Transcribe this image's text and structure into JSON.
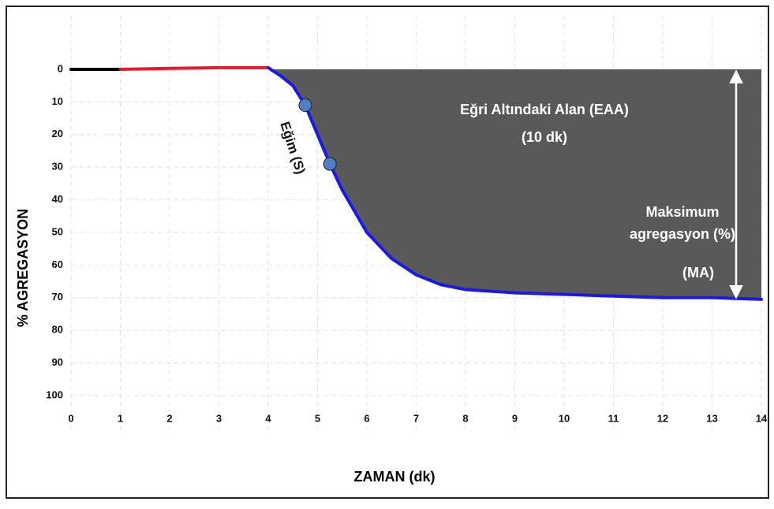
{
  "chart_data": {
    "type": "line",
    "xlabel": "ZAMAN (dk)",
    "ylabel": "% AGREGASYON",
    "xlim": [
      0,
      14
    ],
    "xticks": [
      0,
      1,
      2,
      3,
      4,
      5,
      6,
      7,
      8,
      9,
      10,
      11,
      12,
      13,
      14
    ],
    "ylim": [
      -10,
      110
    ],
    "yticks": [
      0,
      10,
      20,
      30,
      40,
      50,
      60,
      70,
      80,
      90,
      100
    ],
    "y_reversed": true,
    "grid": true,
    "series": [
      {
        "color": "#000000",
        "x": [
          0,
          1
        ],
        "values": [
          0,
          0
        ]
      },
      {
        "color": "#e8192c",
        "x": [
          1,
          2,
          3,
          4
        ],
        "values": [
          0,
          -0.3,
          -0.5,
          -0.5
        ]
      },
      {
        "color": "#1a1ae6",
        "x": [
          4,
          4.25,
          4.5,
          4.75,
          5,
          5.25,
          5.5,
          6,
          6.5,
          7,
          7.5,
          8,
          9,
          10,
          11,
          12,
          13,
          14
        ],
        "values": [
          -0.5,
          2,
          5,
          11,
          20,
          29,
          37,
          50,
          58,
          63,
          66,
          67.5,
          68.5,
          69,
          69.5,
          70,
          70,
          70.5
        ],
        "fill": "#595959"
      }
    ],
    "points": {
      "color": "#4f7fc6",
      "x": [
        4.75,
        5.25
      ],
      "values": [
        11,
        29
      ]
    },
    "annotations": [
      "Eğri Altındaki Alan (EAA)",
      "(10 dk)",
      "Eğim (S)",
      "Maksimum",
      "agregasyon (%)",
      "(MA)"
    ]
  }
}
